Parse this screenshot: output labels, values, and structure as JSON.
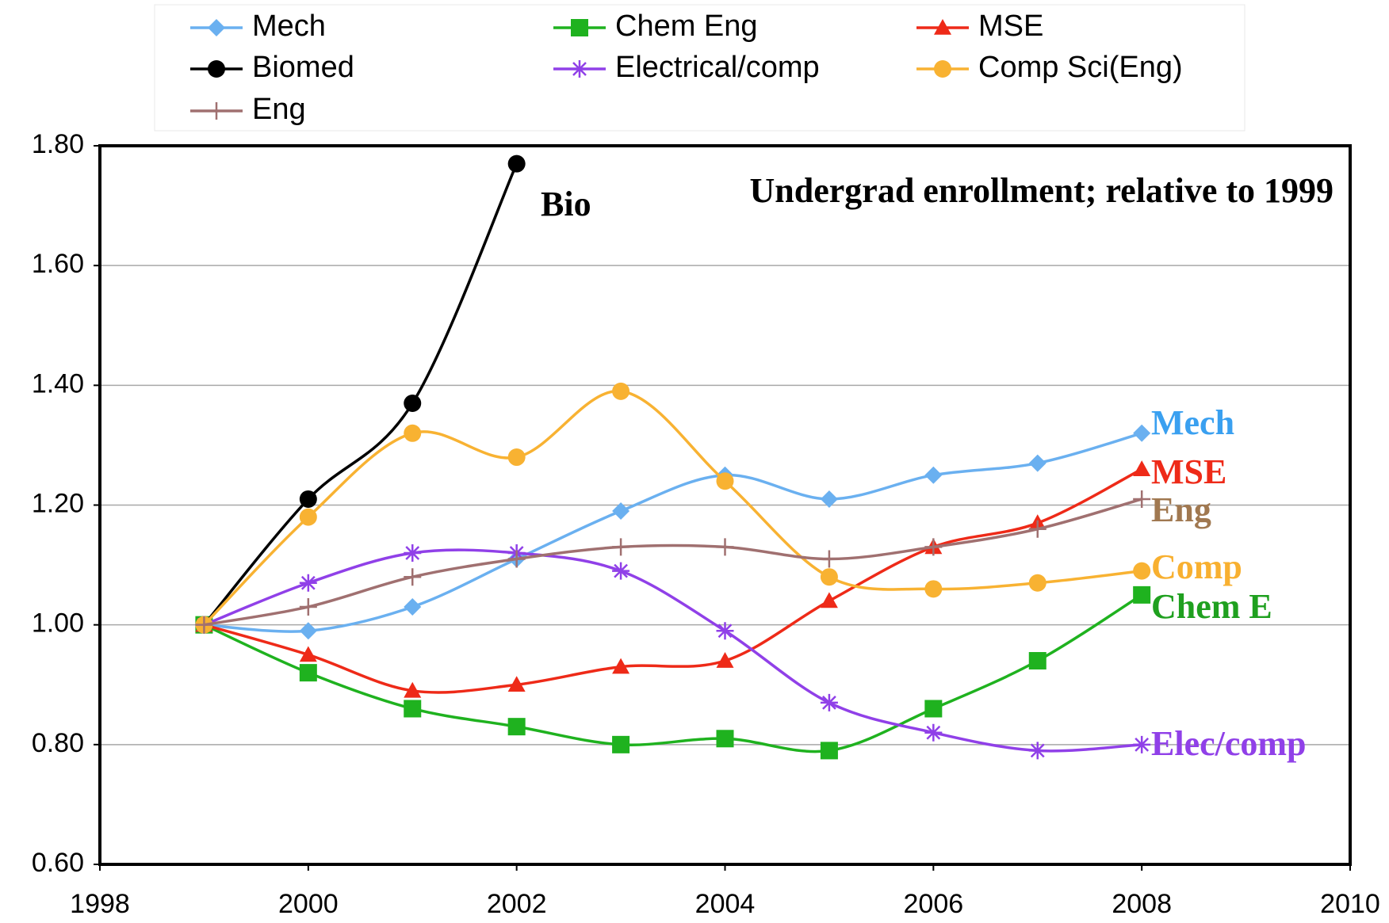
{
  "chart_data": {
    "type": "line",
    "x": [
      1999,
      2000,
      2001,
      2002,
      2003,
      2004,
      2005,
      2006,
      2007,
      2008
    ],
    "series": [
      {
        "name": "Mech",
        "color": "#6ab0f0",
        "marker": "diamond",
        "values": [
          1.0,
          0.99,
          1.03,
          1.11,
          1.19,
          1.25,
          1.21,
          1.25,
          1.27,
          1.32
        ]
      },
      {
        "name": "Chem Eng",
        "color": "#1fb21f",
        "marker": "square",
        "values": [
          1.0,
          0.92,
          0.86,
          0.83,
          0.8,
          0.81,
          0.79,
          0.86,
          0.94,
          1.05
        ]
      },
      {
        "name": "MSE",
        "color": "#ee2a18",
        "marker": "triangle",
        "values": [
          1.0,
          0.95,
          0.89,
          0.9,
          0.93,
          0.94,
          1.04,
          1.13,
          1.17,
          1.26
        ]
      },
      {
        "name": "Biomed",
        "color": "#000000",
        "marker": "circle",
        "values": [
          1.0,
          1.21,
          1.37,
          1.77,
          null,
          null,
          null,
          null,
          null,
          null
        ]
      },
      {
        "name": "Electrical/comp",
        "color": "#9040e8",
        "marker": "star",
        "values": [
          1.0,
          1.07,
          1.12,
          1.12,
          1.09,
          0.99,
          0.87,
          0.82,
          0.79,
          0.8
        ]
      },
      {
        "name": "Comp Sci(Eng)",
        "color": "#f8b232",
        "marker": "circle",
        "values": [
          1.0,
          1.18,
          1.32,
          1.28,
          1.39,
          1.24,
          1.08,
          1.06,
          1.07,
          1.09
        ]
      },
      {
        "name": "Eng",
        "color": "#a07070",
        "marker": "plus",
        "values": [
          1.0,
          1.03,
          1.08,
          1.11,
          1.13,
          1.13,
          1.11,
          1.13,
          1.16,
          1.21
        ]
      }
    ],
    "annotations": [
      {
        "text": "Undergrad enrollment; relative to 1999",
        "color": "#000000"
      },
      {
        "text": "Bio",
        "color": "#000000"
      },
      {
        "text": "Mech",
        "color": "#3aa0f0"
      },
      {
        "text": "MSE",
        "color": "#ee2a18"
      },
      {
        "text": "Eng",
        "color": "#a07850"
      },
      {
        "text": "Comp",
        "color": "#f8b030"
      },
      {
        "text": "Chem E",
        "color": "#1fa01f"
      },
      {
        "text": "Elec/comp",
        "color": "#9040e8"
      }
    ],
    "xlim": [
      1998,
      2010
    ],
    "xticks": [
      1998,
      2000,
      2002,
      2004,
      2006,
      2008,
      2010
    ],
    "ylim": [
      0.6,
      1.8
    ],
    "yticks": [
      {
        "value": 0.6,
        "label": "0.60"
      },
      {
        "value": 0.8,
        "label": "0.80"
      },
      {
        "value": 1.0,
        "label": "1.00"
      },
      {
        "value": 1.2,
        "label": "1.20"
      },
      {
        "value": 1.4,
        "label": "1.40"
      },
      {
        "value": 1.6,
        "label": "1.60"
      },
      {
        "value": 1.8,
        "label": "1.80"
      }
    ],
    "grid": true
  }
}
